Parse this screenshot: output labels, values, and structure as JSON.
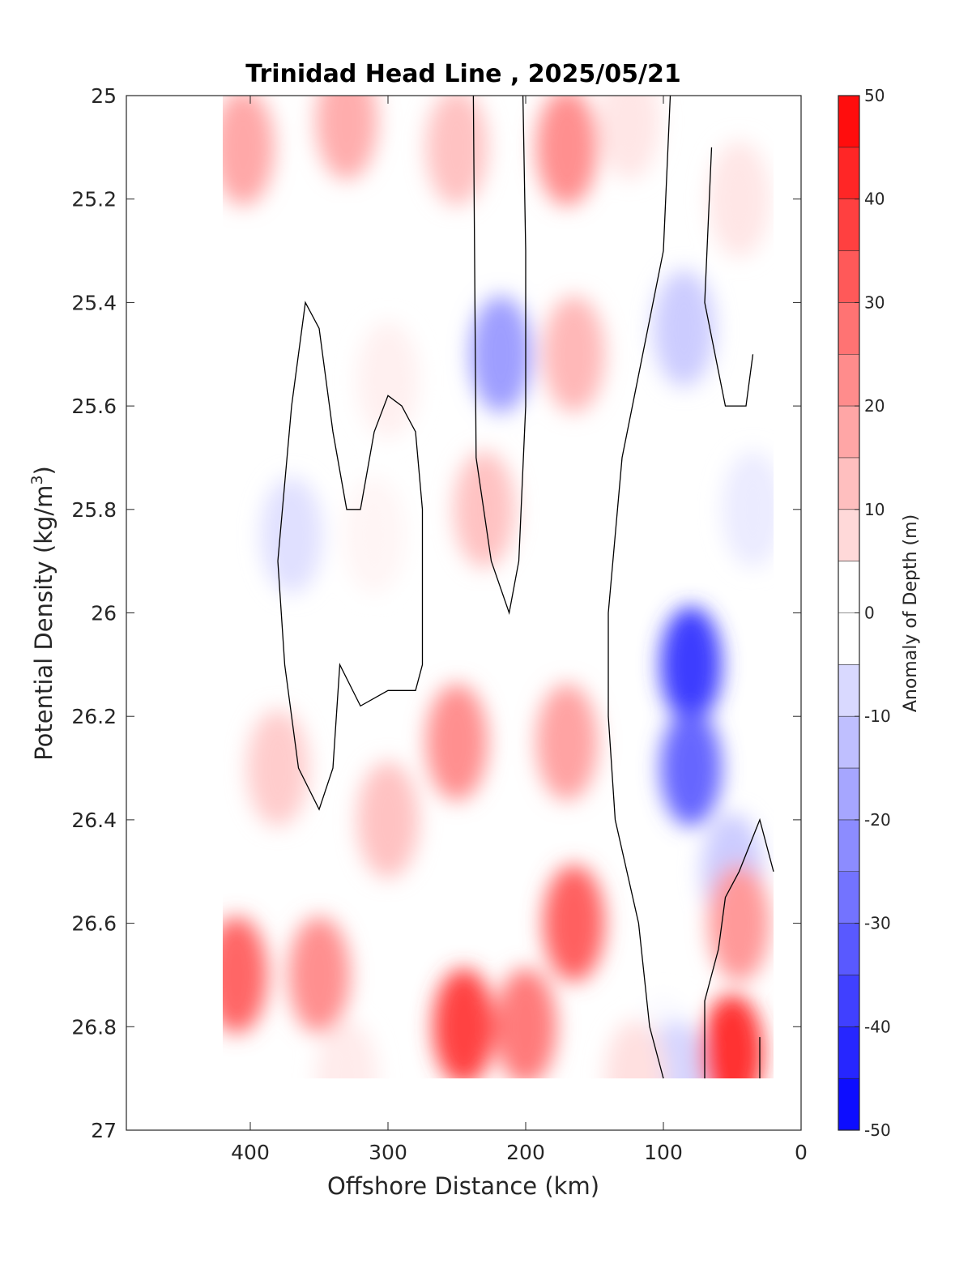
{
  "chart_data": {
    "type": "heatmap",
    "subtype": "filled-contour",
    "title": "Trinidad Head Line , 2025/05/21",
    "xlabel": "Offshore Distance (km)",
    "ylabel": "Potential Density (kg/m",
    "ylabel_superscript": "3",
    "ylabel_suffix": ")",
    "xlim": [
      0,
      490
    ],
    "x_reversed": true,
    "ylim": [
      25,
      27
    ],
    "y_reversed": true,
    "xticks": [
      400,
      300,
      200,
      100,
      0
    ],
    "yticks": [
      25,
      25.2,
      25.4,
      25.6,
      25.8,
      26,
      26.2,
      26.4,
      26.6,
      26.8,
      27
    ],
    "xtick_labels": [
      "400",
      "300",
      "200",
      "100",
      "0"
    ],
    "ytick_labels": [
      "25",
      "25.2",
      "25.4",
      "25.6",
      "25.8",
      "26",
      "26.2",
      "26.4",
      "26.6",
      "26.8",
      "27"
    ],
    "data_extent": {
      "x": [
        20,
        420
      ],
      "y": [
        25,
        26.9
      ]
    },
    "zero_contour_color": "#000000",
    "colorbar": {
      "label": "Anomaly of Depth (m)",
      "range": [
        -50,
        50
      ],
      "step": 5,
      "tick_values": [
        50,
        40,
        30,
        20,
        10,
        0,
        -10,
        -20,
        -30,
        -40,
        -50
      ],
      "tick_labels": [
        "50",
        "40",
        "30",
        "20",
        "10",
        "0",
        "-10",
        "-20",
        "-30",
        "-40",
        "-50"
      ],
      "colormap": "blue-white-red",
      "max_color": "#ff0000",
      "mid_color": "#ffffff",
      "min_color": "#0000ff"
    },
    "features": [
      {
        "x": 405,
        "y": 25.1,
        "value": 17
      },
      {
        "x": 330,
        "y": 25.05,
        "value": 16
      },
      {
        "x": 250,
        "y": 25.1,
        "value": 12
      },
      {
        "x": 300,
        "y": 25.55,
        "value": 3
      },
      {
        "x": 310,
        "y": 25.85,
        "value": 2
      },
      {
        "x": 370,
        "y": 25.85,
        "value": -6
      },
      {
        "x": 218,
        "y": 25.5,
        "value": -19
      },
      {
        "x": 170,
        "y": 25.1,
        "value": 22
      },
      {
        "x": 165,
        "y": 25.5,
        "value": 14
      },
      {
        "x": 230,
        "y": 25.8,
        "value": 12
      },
      {
        "x": 125,
        "y": 25.05,
        "value": 5
      },
      {
        "x": 85,
        "y": 25.45,
        "value": -10
      },
      {
        "x": 80,
        "y": 26.1,
        "value": -38
      },
      {
        "x": 80,
        "y": 26.3,
        "value": -30
      },
      {
        "x": 50,
        "y": 26.5,
        "value": -10
      },
      {
        "x": 35,
        "y": 25.8,
        "value": -4
      },
      {
        "x": 45,
        "y": 25.2,
        "value": 5
      },
      {
        "x": 250,
        "y": 26.25,
        "value": 22
      },
      {
        "x": 170,
        "y": 26.25,
        "value": 18
      },
      {
        "x": 245,
        "y": 26.8,
        "value": 37
      },
      {
        "x": 200,
        "y": 26.8,
        "value": 26
      },
      {
        "x": 165,
        "y": 26.6,
        "value": 31
      },
      {
        "x": 410,
        "y": 26.7,
        "value": 30
      },
      {
        "x": 350,
        "y": 26.7,
        "value": 22
      },
      {
        "x": 330,
        "y": 26.9,
        "value": 4
      },
      {
        "x": 300,
        "y": 26.4,
        "value": 12
      },
      {
        "x": 380,
        "y": 26.3,
        "value": 10
      },
      {
        "x": 100,
        "y": 26.85,
        "value": -1
      },
      {
        "x": 90,
        "y": 26.9,
        "value": -8
      },
      {
        "x": 50,
        "y": 26.85,
        "value": 40
      },
      {
        "x": 45,
        "y": 26.6,
        "value": 20
      },
      {
        "x": 120,
        "y": 26.9,
        "value": 6
      }
    ],
    "zero_contours": [
      [
        [
          380,
          25.9
        ],
        [
          370,
          25.6
        ],
        [
          360,
          25.4
        ],
        [
          350,
          25.45
        ],
        [
          340,
          25.65
        ],
        [
          330,
          25.8
        ],
        [
          320,
          25.8
        ],
        [
          310,
          25.65
        ],
        [
          300,
          25.58
        ],
        [
          290,
          25.6
        ],
        [
          280,
          25.65
        ],
        [
          275,
          25.8
        ],
        [
          275,
          26.1
        ],
        [
          280,
          26.15
        ],
        [
          300,
          26.15
        ],
        [
          320,
          26.18
        ],
        [
          335,
          26.1
        ],
        [
          340,
          26.3
        ],
        [
          350,
          26.38
        ],
        [
          365,
          26.3
        ],
        [
          375,
          26.1
        ],
        [
          380,
          25.9
        ]
      ],
      [
        [
          238,
          25
        ],
        [
          236,
          25.7
        ],
        [
          225,
          25.9
        ],
        [
          212,
          26.0
        ],
        [
          205,
          25.9
        ],
        [
          200,
          25.6
        ],
        [
          200,
          25.3
        ],
        [
          202,
          25
        ]
      ],
      [
        [
          95,
          25
        ],
        [
          100,
          25.3
        ],
        [
          115,
          25.5
        ],
        [
          130,
          25.7
        ],
        [
          140,
          26.0
        ],
        [
          140,
          26.2
        ],
        [
          135,
          26.4
        ],
        [
          118,
          26.6
        ],
        [
          110,
          26.8
        ],
        [
          100,
          26.9
        ]
      ],
      [
        [
          65,
          25.1
        ],
        [
          70,
          25.4
        ],
        [
          55,
          25.6
        ],
        [
          40,
          25.6
        ],
        [
          35,
          25.5
        ]
      ],
      [
        [
          20,
          26.5
        ],
        [
          30,
          26.4
        ],
        [
          45,
          26.5
        ],
        [
          55,
          26.55
        ],
        [
          60,
          26.65
        ],
        [
          70,
          26.75
        ],
        [
          70,
          26.9
        ]
      ],
      [
        [
          30,
          26.82
        ],
        [
          30,
          26.9
        ]
      ]
    ]
  }
}
